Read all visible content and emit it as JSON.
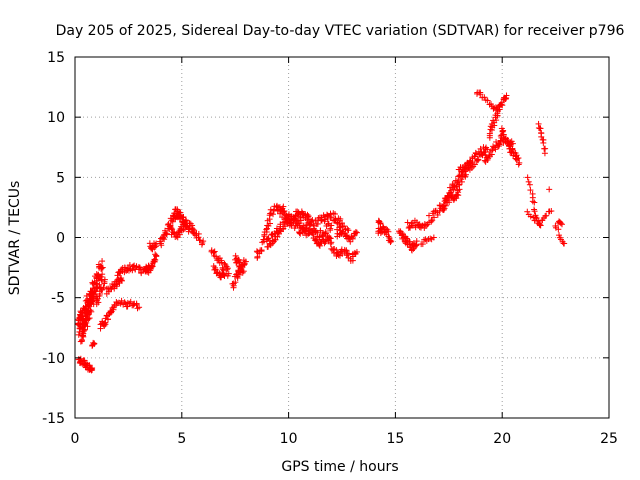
{
  "chart_data": {
    "type": "scatter",
    "title": "Day 205 of 2025, Sidereal Day-to-day VTEC variation (SDTVAR) for receiver p796",
    "xlabel": "GPS time / hours",
    "ylabel": "SDTVAR / TECUs",
    "xlim": [
      0,
      25
    ],
    "ylim": [
      -15,
      15
    ],
    "xticks": [
      0,
      5,
      10,
      15,
      20,
      25
    ],
    "yticks": [
      -15,
      -10,
      -5,
      0,
      5,
      10,
      15
    ],
    "xtick_labels": [
      "0",
      "5",
      "10",
      "15",
      "20",
      "25"
    ],
    "ytick_labels": [
      "-15",
      "-10",
      "-5",
      "0",
      "5",
      "10",
      "15"
    ],
    "grid": true,
    "marker": "+",
    "color": "#ff0000",
    "series": [
      {
        "name": "SDTVAR",
        "segments": [
          {
            "x": [
              0.15,
              0.3,
              0.5,
              0.7,
              0.9,
              1.1,
              1.3
            ],
            "y": [
              -7.5,
              -6.8,
              -6.0,
              -5.0,
              -4.2,
              -3.3,
              -2.5
            ],
            "width": 1.8
          },
          {
            "x": [
              0.3,
              0.5,
              0.7,
              0.9
            ],
            "y": [
              -8.2,
              -7.0,
              -5.8,
              -4.5
            ],
            "width": 1.5
          },
          {
            "x": [
              0.2,
              0.4,
              0.55,
              0.7,
              0.8
            ],
            "y": [
              -10.2,
              -10.3,
              -10.6,
              -10.9,
              -11.0
            ],
            "width": 0.5
          },
          {
            "x": [
              0.8,
              0.9
            ],
            "y": [
              -8.9,
              -8.8
            ],
            "width": 0.3
          },
          {
            "x": [
              1.2,
              1.4,
              1.6,
              1.8
            ],
            "y": [
              -7.5,
              -7.0,
              -6.5,
              -6.0
            ],
            "width": 0.6
          },
          {
            "x": [
              1.0,
              1.2,
              1.4
            ],
            "y": [
              -5.5,
              -4.5,
              -3.5
            ],
            "width": 0.8
          },
          {
            "x": [
              1.8,
              2.0,
              2.2,
              2.4,
              2.6,
              2.8,
              3.0
            ],
            "y": [
              -5.6,
              -5.5,
              -5.4,
              -5.6,
              -5.5,
              -5.6,
              -5.8
            ],
            "width": 0.4
          },
          {
            "x": [
              1.5,
              1.8,
              2.0,
              2.2
            ],
            "y": [
              -4.5,
              -4.0,
              -3.8,
              -3.6
            ],
            "width": 0.6
          },
          {
            "x": [
              2.0,
              2.3,
              2.6,
              2.9,
              3.2,
              3.5
            ],
            "y": [
              -3.0,
              -2.7,
              -2.5,
              -2.6,
              -2.8,
              -2.5
            ],
            "width": 0.5
          },
          {
            "x": [
              3.3,
              3.5,
              3.7,
              3.8
            ],
            "y": [
              -3.0,
              -2.5,
              -2.0,
              -1.5
            ],
            "width": 0.6
          },
          {
            "x": [
              3.5,
              3.6,
              3.7,
              3.8
            ],
            "y": [
              -0.5,
              -0.8,
              -0.7,
              -0.5
            ],
            "width": 0.4
          },
          {
            "x": [
              4.0,
              4.2,
              4.4,
              4.6,
              4.8,
              5.0
            ],
            "y": [
              -0.5,
              0.2,
              1.0,
              1.6,
              2.0,
              1.7
            ],
            "width": 0.7
          },
          {
            "x": [
              4.7,
              4.9,
              5.1,
              5.3,
              5.5,
              5.7,
              6.0
            ],
            "y": [
              2.0,
              1.8,
              1.5,
              1.0,
              0.5,
              0.0,
              -0.3
            ],
            "width": 0.8
          },
          {
            "x": [
              4.5,
              4.8,
              5.0,
              5.2
            ],
            "y": [
              0.5,
              0.2,
              0.8,
              1.2
            ],
            "width": 0.6
          },
          {
            "x": [
              6.4,
              6.7,
              7.0,
              7.2
            ],
            "y": [
              -1.2,
              -1.8,
              -2.5,
              -3.0
            ],
            "width": 0.8
          },
          {
            "x": [
              6.5,
              6.8,
              7.0
            ],
            "y": [
              -2.5,
              -3.0,
              -3.2
            ],
            "width": 0.6
          },
          {
            "x": [
              7.4,
              7.6,
              7.8,
              8.0
            ],
            "y": [
              -4.0,
              -3.2,
              -2.5,
              -2.0
            ],
            "width": 0.8
          },
          {
            "x": [
              7.5,
              7.7,
              7.9
            ],
            "y": [
              -1.8,
              -2.2,
              -2.8
            ],
            "width": 0.6
          },
          {
            "x": [
              8.5,
              8.8,
              9.0,
              9.2,
              9.5,
              9.8
            ],
            "y": [
              -1.5,
              -0.5,
              1.0,
              2.0,
              2.5,
              2.2
            ],
            "width": 0.8
          },
          {
            "x": [
              9.0,
              9.5,
              10.0,
              10.5,
              11.0
            ],
            "y": [
              -0.5,
              0.5,
              1.5,
              1.8,
              1.5
            ],
            "width": 0.9
          },
          {
            "x": [
              9.5,
              10.0,
              10.5,
              11.0,
              11.5,
              12.0
            ],
            "y": [
              2.2,
              1.5,
              0.8,
              0.5,
              0.2,
              1.0
            ],
            "width": 0.8
          },
          {
            "x": [
              10.5,
              11.0,
              11.5,
              12.0,
              12.5
            ],
            "y": [
              0.5,
              1.0,
              1.5,
              1.8,
              1.2
            ],
            "width": 0.7
          },
          {
            "x": [
              11.2,
              11.5,
              11.8,
              12.0
            ],
            "y": [
              -0.2,
              -0.5,
              0.0,
              -0.4
            ],
            "width": 0.5
          },
          {
            "x": [
              12.0,
              12.3,
              12.6,
              12.9,
              13.2
            ],
            "y": [
              -0.8,
              -1.5,
              -1.0,
              -1.8,
              -1.2
            ],
            "width": 0.6
          },
          {
            "x": [
              12.3,
              12.6,
              12.9,
              13.2
            ],
            "y": [
              0.3,
              0.5,
              -0.2,
              0.4
            ],
            "width": 0.5
          },
          {
            "x": [
              12.3,
              12.5,
              12.8
            ],
            "y": [
              0.8,
              0.9,
              0.6
            ],
            "width": 0.3
          },
          {
            "x": [
              14.2,
              14.4,
              14.6,
              14.8
            ],
            "y": [
              0.5,
              0.7,
              0.4,
              -0.3
            ],
            "width": 0.6
          },
          {
            "x": [
              14.2,
              14.3
            ],
            "y": [
              1.3,
              1.2
            ],
            "width": 0.2
          },
          {
            "x": [
              15.2,
              15.4,
              15.6,
              15.8,
              16.0
            ],
            "y": [
              0.5,
              0.0,
              -0.5,
              -0.8,
              -0.3
            ],
            "width": 0.6
          },
          {
            "x": [
              15.6,
              15.9,
              16.2,
              16.5
            ],
            "y": [
              1.0,
              1.2,
              0.8,
              1.1
            ],
            "width": 0.5
          },
          {
            "x": [
              16.2,
              16.5,
              16.8
            ],
            "y": [
              -0.4,
              -0.2,
              0.0
            ],
            "width": 0.4
          },
          {
            "x": [
              16.6,
              16.9,
              17.2,
              17.5,
              17.8,
              18.0
            ],
            "y": [
              1.5,
              2.0,
              2.6,
              3.2,
              3.5,
              4.0
            ],
            "width": 0.8
          },
          {
            "x": [
              17.2,
              17.5,
              17.8,
              18.1,
              18.4,
              18.7,
              19.0,
              19.3
            ],
            "y": [
              2.5,
              3.5,
              4.5,
              5.0,
              5.8,
              6.5,
              7.0,
              7.3
            ],
            "width": 0.9
          },
          {
            "x": [
              18.0,
              18.3,
              18.6
            ],
            "y": [
              5.5,
              5.9,
              6.2
            ],
            "width": 0.5
          },
          {
            "x": [
              18.8,
              19.0,
              19.3,
              19.6,
              19.8
            ],
            "y": [
              12.2,
              11.8,
              11.2,
              10.8,
              10.5
            ],
            "width": 0.4
          },
          {
            "x": [
              19.4,
              19.6,
              19.8,
              20.0,
              20.2
            ],
            "y": [
              8.5,
              9.5,
              10.5,
              11.2,
              11.8
            ],
            "width": 0.5
          },
          {
            "x": [
              19.2,
              19.5,
              19.8,
              20.0,
              20.3,
              20.5
            ],
            "y": [
              6.5,
              7.2,
              7.8,
              8.2,
              7.5,
              7.8
            ],
            "width": 0.7
          },
          {
            "x": [
              20.0,
              20.2,
              20.4,
              20.6,
              20.8
            ],
            "y": [
              8.8,
              8.0,
              7.3,
              6.8,
              6.2
            ],
            "width": 0.6
          },
          {
            "x": [
              21.2,
              21.4,
              21.5,
              21.6,
              21.8
            ],
            "y": [
              5.0,
              3.5,
              2.5,
              1.5,
              1.0
            ],
            "width": 0.4
          },
          {
            "x": [
              21.7,
              21.8,
              21.9,
              22.0
            ],
            "y": [
              9.3,
              8.8,
              8.0,
              7.0
            ],
            "width": 0.3
          },
          {
            "x": [
              21.2,
              21.5,
              21.8,
              22.0,
              22.3
            ],
            "y": [
              2.0,
              1.5,
              1.2,
              1.8,
              2.2
            ],
            "width": 0.4
          },
          {
            "x": [
              22.2
            ],
            "y": [
              4.0
            ],
            "width": 0.1
          },
          {
            "x": [
              22.5,
              22.7,
              22.9
            ],
            "y": [
              1.0,
              0.0,
              -0.5
            ],
            "width": 0.4
          },
          {
            "x": [
              22.6,
              22.8
            ],
            "y": [
              1.3,
              1.1
            ],
            "width": 0.2
          }
        ]
      }
    ]
  }
}
